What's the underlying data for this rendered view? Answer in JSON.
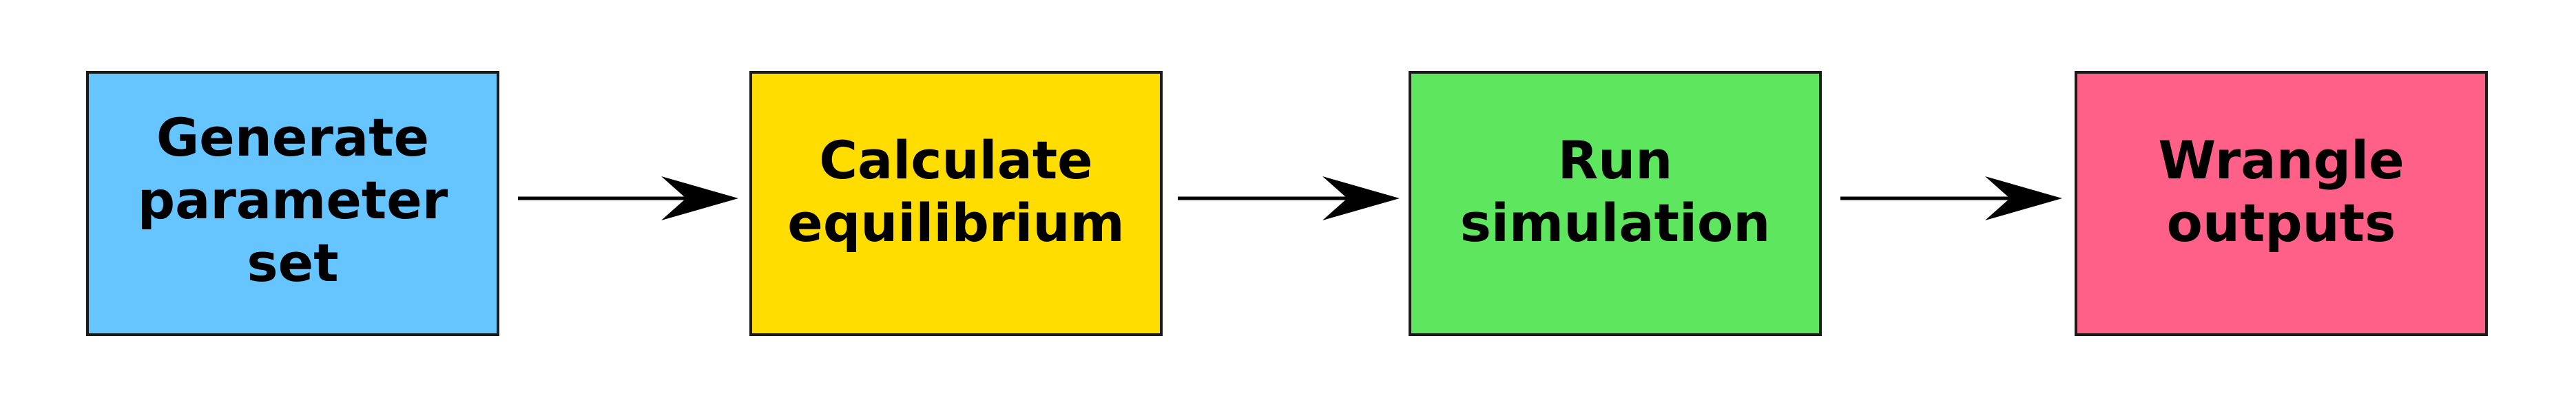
{
  "diagram": {
    "type": "flowchart",
    "direction": "left-to-right",
    "steps": [
      {
        "label": "Generate\nparameter\nset",
        "color": "#66c4ff"
      },
      {
        "label": "Calculate\nequilibrium",
        "color": "#ffdd00"
      },
      {
        "label": "Run\nsimulation",
        "color": "#5ee65e"
      },
      {
        "label": "Wrangle\noutputs",
        "color": "#ff6088"
      }
    ],
    "edges": [
      {
        "from": 0,
        "to": 1
      },
      {
        "from": 1,
        "to": 2
      },
      {
        "from": 2,
        "to": 3
      }
    ],
    "arrow_color": "#000000",
    "border_color": "#1a1a1a"
  }
}
